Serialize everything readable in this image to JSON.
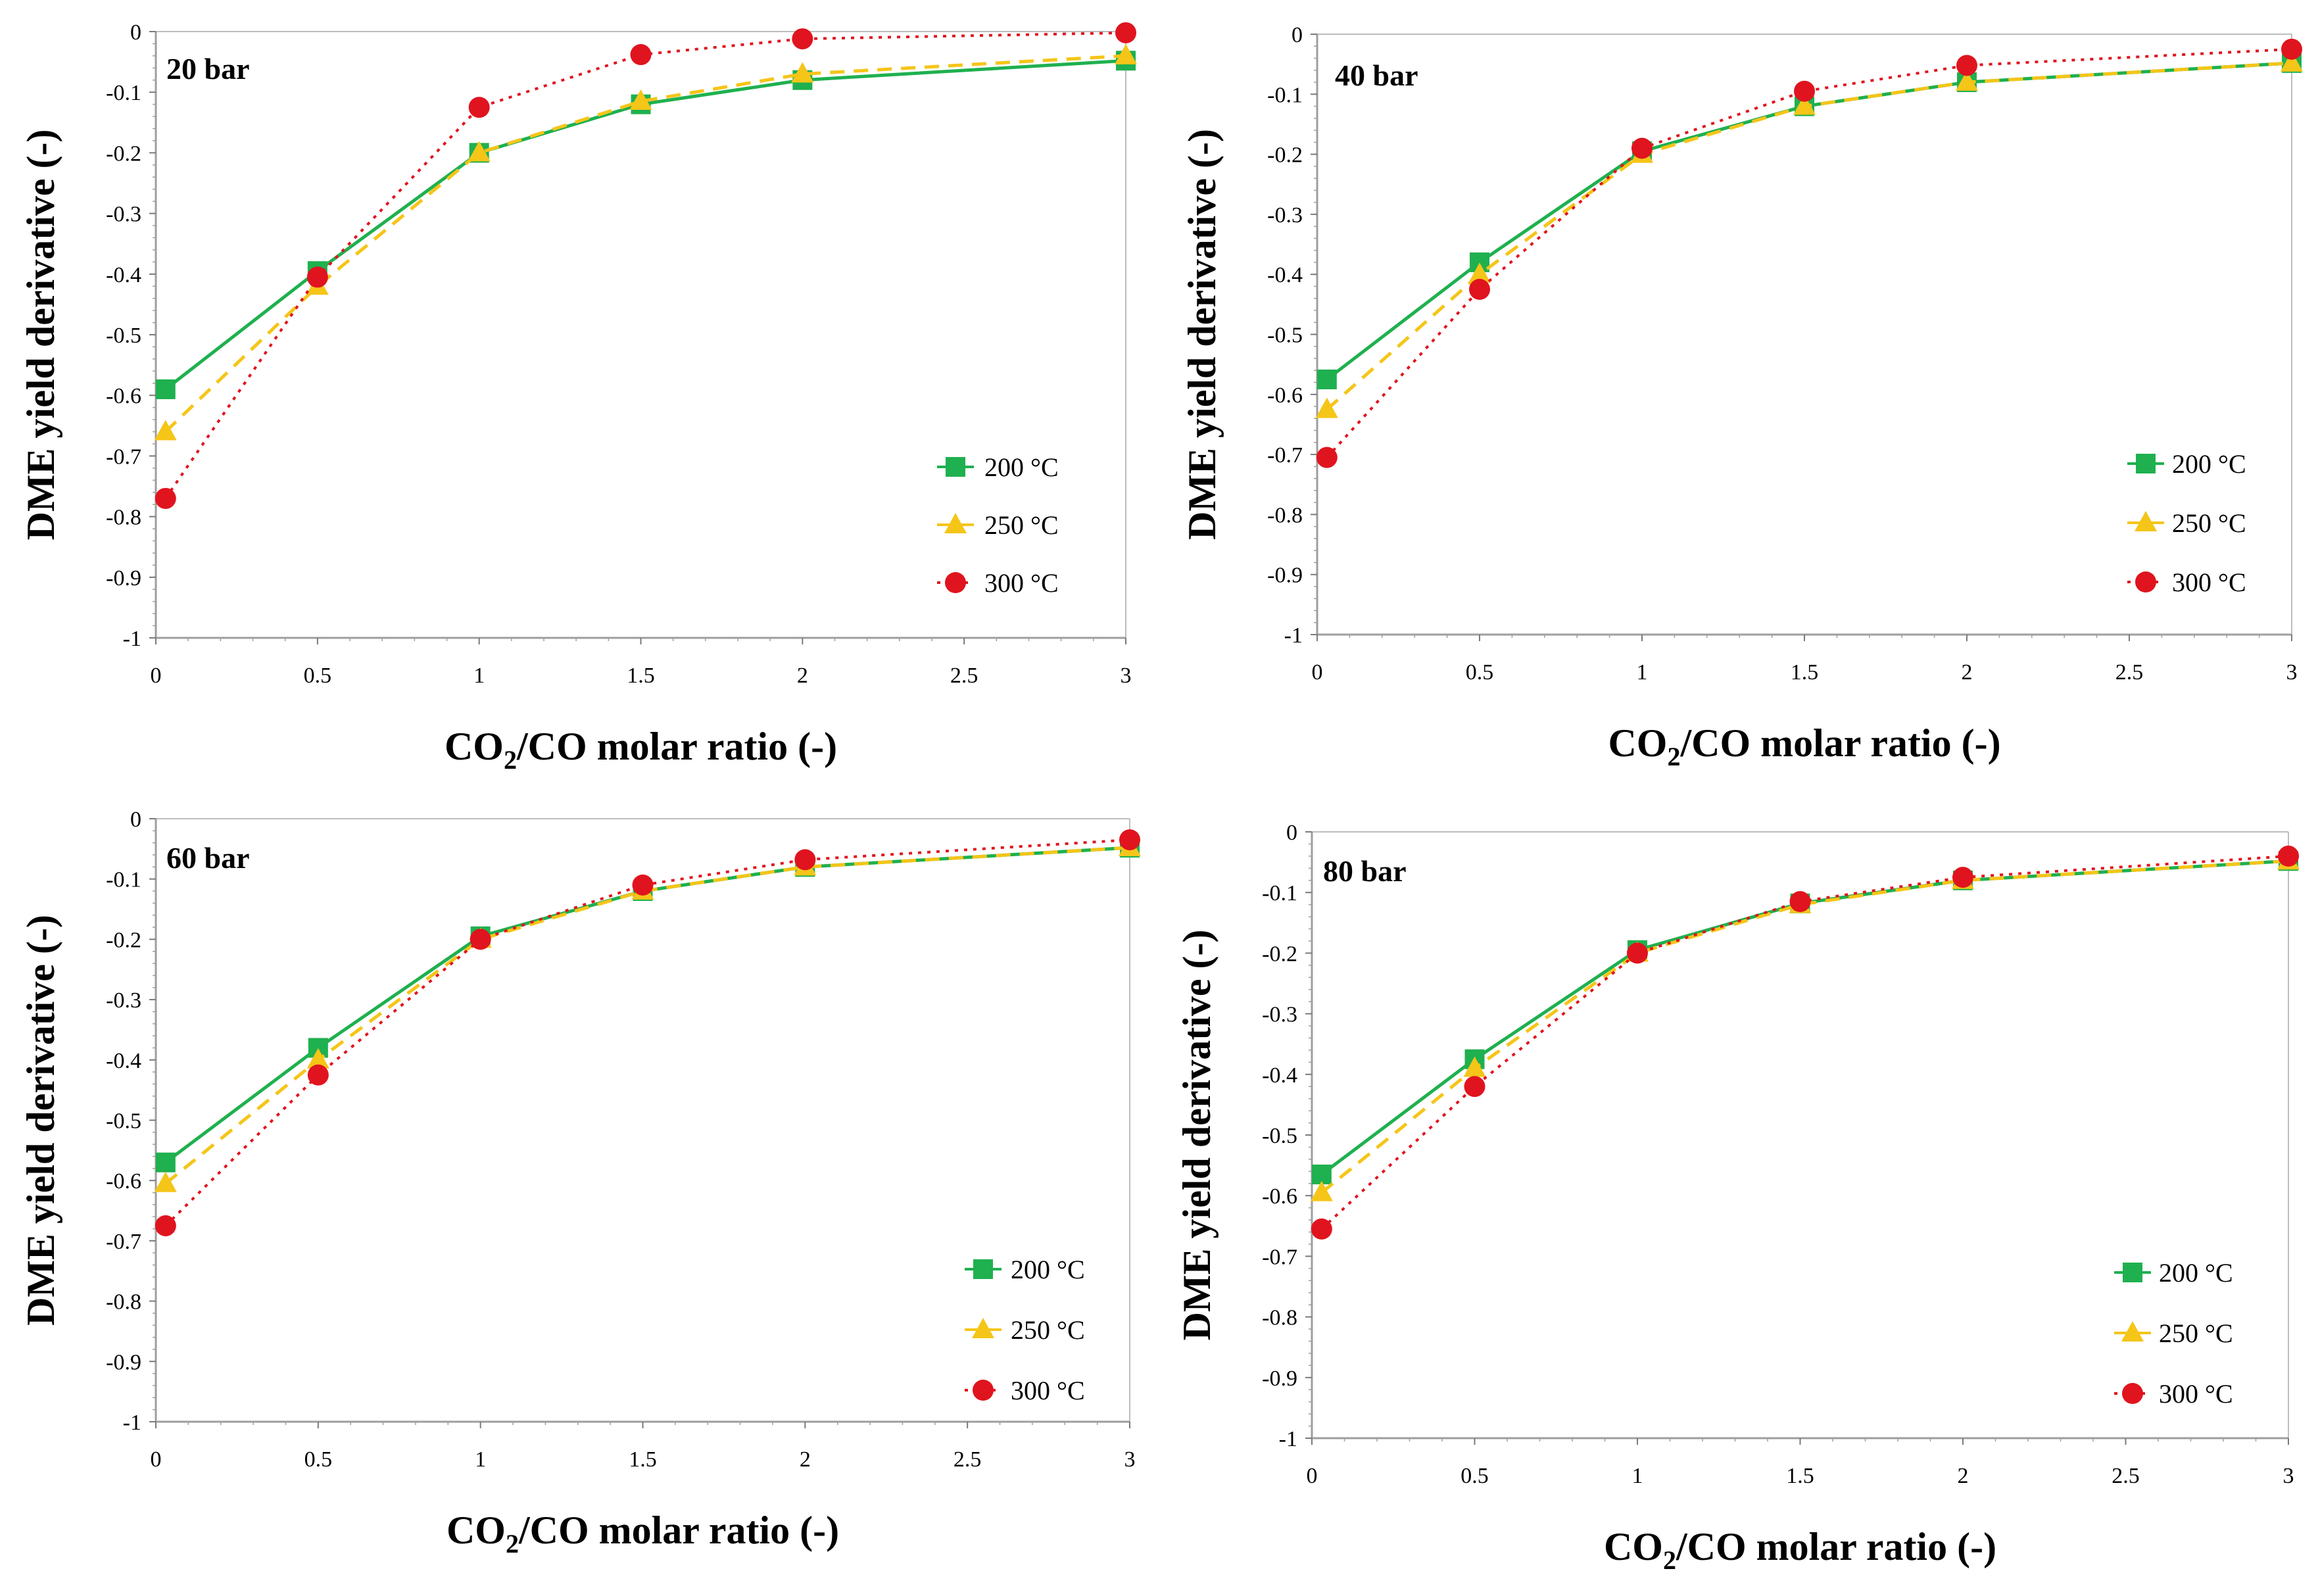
{
  "chart_data": [
    {
      "type": "line",
      "title": "20 bar",
      "xlabel_parts": [
        "CO",
        "2",
        "/CO molar ratio (-)"
      ],
      "ylabel": "DME yield derivative  (-)",
      "xlim": [
        0,
        3
      ],
      "ylim": [
        -1,
        0
      ],
      "xticks": [
        "0",
        "0.5",
        "1",
        "1.5",
        "2",
        "2.5",
        "3"
      ],
      "yticks": [
        "0",
        "-0.1",
        "-0.2",
        "-0.3",
        "-0.4",
        "-0.5",
        "-0.6",
        "-0.7",
        "-0.8",
        "-0.9",
        "-1"
      ],
      "x": [
        0.03,
        0.5,
        1,
        1.5,
        2,
        3
      ],
      "series": [
        {
          "name": "200 °C",
          "values": [
            -0.59,
            -0.395,
            -0.2,
            -0.12,
            -0.08,
            -0.048
          ],
          "color": "#1fb04f",
          "marker": "square",
          "dash": "solid"
        },
        {
          "name": "250 °C",
          "values": [
            -0.66,
            -0.42,
            -0.2,
            -0.115,
            -0.07,
            -0.04
          ],
          "color": "#f5c518",
          "marker": "triangle",
          "dash": "dashed"
        },
        {
          "name": "300 °C",
          "values": [
            -0.77,
            -0.405,
            -0.125,
            -0.038,
            -0.012,
            -0.002
          ],
          "color": "#e0141e",
          "marker": "circle",
          "dash": "dotted"
        }
      ],
      "legend": "right"
    },
    {
      "type": "line",
      "title": "40 bar",
      "xlabel_parts": [
        "CO",
        "2",
        "/CO molar ratio (-)"
      ],
      "ylabel": "DME yield derivative  (-)",
      "xlim": [
        0,
        3
      ],
      "ylim": [
        -1,
        0
      ],
      "xticks": [
        "0",
        "0.5",
        "1",
        "1.5",
        "2",
        "2.5",
        "3"
      ],
      "yticks": [
        "0",
        "-0.1",
        "-0.2",
        "-0.3",
        "-0.4",
        "-0.5",
        "-0.6",
        "-0.7",
        "-0.8",
        "-0.9",
        "-1"
      ],
      "x": [
        0.03,
        0.5,
        1,
        1.5,
        2,
        3
      ],
      "series": [
        {
          "name": "200 °C",
          "values": [
            -0.575,
            -0.38,
            -0.195,
            -0.12,
            -0.08,
            -0.048
          ],
          "color": "#1fb04f",
          "marker": "square",
          "dash": "solid"
        },
        {
          "name": "250 °C",
          "values": [
            -0.625,
            -0.4,
            -0.2,
            -0.12,
            -0.08,
            -0.048
          ],
          "color": "#f5c518",
          "marker": "triangle",
          "dash": "dashed"
        },
        {
          "name": "300 °C",
          "values": [
            -0.705,
            -0.425,
            -0.19,
            -0.095,
            -0.052,
            -0.025
          ],
          "color": "#e0141e",
          "marker": "circle",
          "dash": "dotted"
        }
      ],
      "legend": "right"
    },
    {
      "type": "line",
      "title": "60 bar",
      "xlabel_parts": [
        "CO",
        "2",
        "/CO molar ratio (-)"
      ],
      "ylabel": "DME yield derivative  (-)",
      "xlim": [
        0,
        3
      ],
      "ylim": [
        -1,
        0
      ],
      "xticks": [
        "0",
        "0.5",
        "1",
        "1.5",
        "2",
        "2.5",
        "3"
      ],
      "yticks": [
        "0",
        "-0.1",
        "-0.2",
        "-0.3",
        "-0.4",
        "-0.5",
        "-0.6",
        "-0.7",
        "-0.8",
        "-0.9",
        "-1"
      ],
      "x": [
        0.03,
        0.5,
        1,
        1.5,
        2,
        3
      ],
      "series": [
        {
          "name": "200 °C",
          "values": [
            -0.57,
            -0.38,
            -0.195,
            -0.12,
            -0.08,
            -0.048
          ],
          "color": "#1fb04f",
          "marker": "square",
          "dash": "solid"
        },
        {
          "name": "250 °C",
          "values": [
            -0.605,
            -0.4,
            -0.2,
            -0.12,
            -0.08,
            -0.048
          ],
          "color": "#f5c518",
          "marker": "triangle",
          "dash": "dashed"
        },
        {
          "name": "300 °C",
          "values": [
            -0.675,
            -0.425,
            -0.2,
            -0.11,
            -0.068,
            -0.035
          ],
          "color": "#e0141e",
          "marker": "circle",
          "dash": "dotted"
        }
      ],
      "legend": "right"
    },
    {
      "type": "line",
      "title": "80 bar",
      "xlabel_parts": [
        "CO",
        "2",
        "/CO molar ratio (-)"
      ],
      "ylabel": "DME yield derivative  (-)",
      "xlim": [
        0,
        3
      ],
      "ylim": [
        -1,
        0
      ],
      "xticks": [
        "0",
        "0.5",
        "1",
        "1.5",
        "2",
        "2.5",
        "3"
      ],
      "yticks": [
        "0",
        "-0.1",
        "-0.2",
        "-0.3",
        "-0.4",
        "-0.5",
        "-0.6",
        "-0.7",
        "-0.8",
        "-0.9",
        "-1"
      ],
      "x": [
        0.03,
        0.5,
        1,
        1.5,
        2,
        3
      ],
      "series": [
        {
          "name": "200 °C",
          "values": [
            -0.565,
            -0.375,
            -0.195,
            -0.118,
            -0.08,
            -0.048
          ],
          "color": "#1fb04f",
          "marker": "square",
          "dash": "solid"
        },
        {
          "name": "250 °C",
          "values": [
            -0.595,
            -0.39,
            -0.2,
            -0.12,
            -0.08,
            -0.048
          ],
          "color": "#f5c518",
          "marker": "triangle",
          "dash": "dashed"
        },
        {
          "name": "300 °C",
          "values": [
            -0.655,
            -0.42,
            -0.2,
            -0.115,
            -0.075,
            -0.04
          ],
          "color": "#e0141e",
          "marker": "circle",
          "dash": "dotted"
        }
      ],
      "legend": "right"
    }
  ]
}
